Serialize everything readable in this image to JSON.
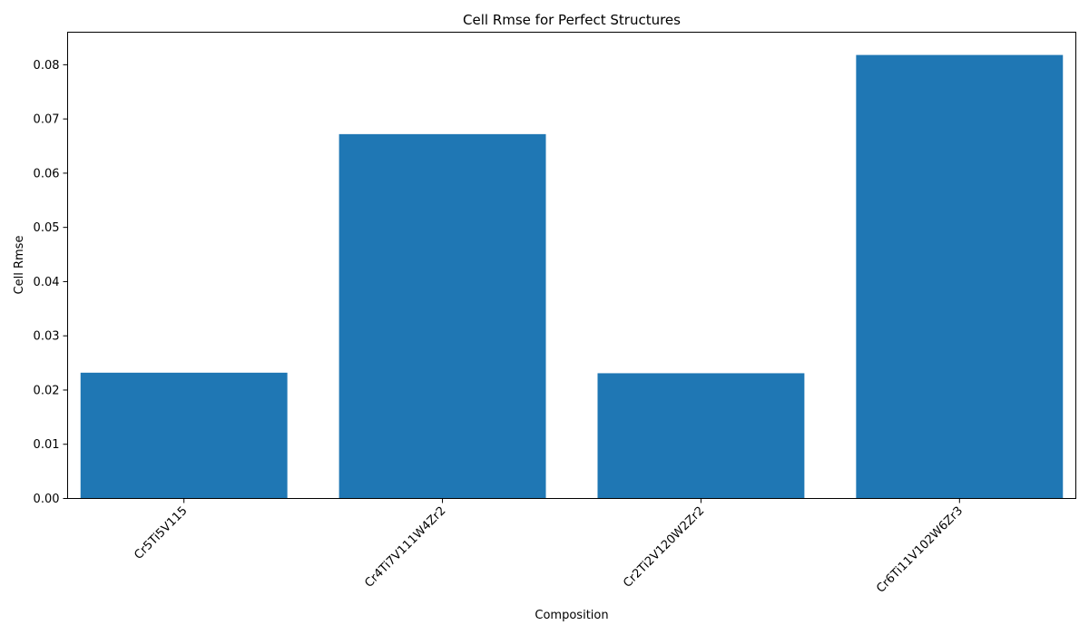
{
  "chart_data": {
    "type": "bar",
    "title": "Cell Rmse for Perfect Structures",
    "xlabel": "Composition",
    "ylabel": "Cell Rmse",
    "categories": [
      "Cr5Ti5V115",
      "Cr4Ti7V111W4Zr2",
      "Cr2Ti2V120W2Zr2",
      "Cr6Ti11V102W6Zr3"
    ],
    "values": [
      0.0232,
      0.0672,
      0.0231,
      0.0818
    ],
    "ylim": [
      0,
      0.086
    ],
    "yticks": [
      0.0,
      0.01,
      0.02,
      0.03,
      0.04,
      0.05,
      0.06,
      0.07,
      0.08
    ],
    "ytick_labels": [
      "0.00",
      "0.01",
      "0.02",
      "0.03",
      "0.04",
      "0.05",
      "0.06",
      "0.07",
      "0.08"
    ],
    "bar_color": "#1f77b4",
    "grid": false,
    "legend": "none"
  }
}
